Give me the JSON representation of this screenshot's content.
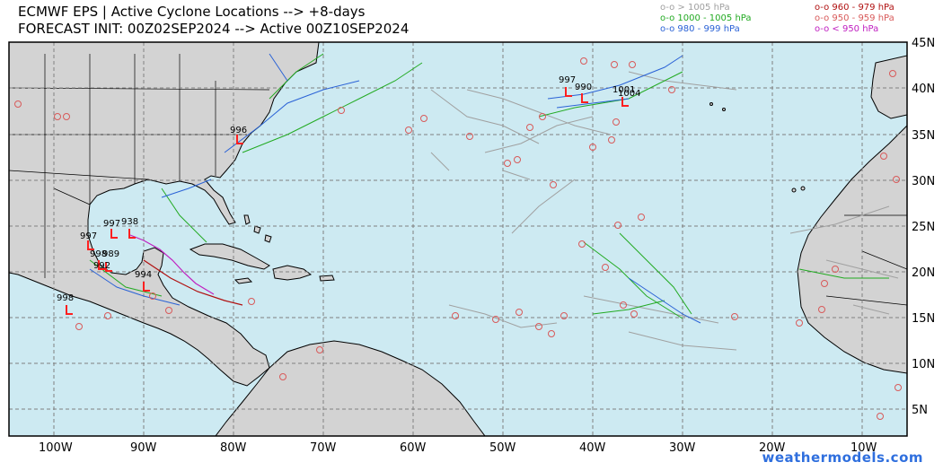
{
  "header": {
    "title_line1": "ECMWF EPS | Active Cyclone Locations --> +8-days",
    "title_line2": "FORECAST INIT: 00Z02SEP2024 --> Active 00Z10SEP2024"
  },
  "legend": [
    {
      "text": "o-o > 1005 hPa",
      "color": "#a0a0a0"
    },
    {
      "text": "o-o 1000 - 1005 hPa",
      "color": "#22aa22"
    },
    {
      "text": "o-o 980 - 999 hPa",
      "color": "#2a62d6"
    },
    {
      "text": "o-o 960 - 979 hPa",
      "color": "#b01010"
    },
    {
      "text": "o-o 950 - 959 hPa",
      "color": "#d85a5a"
    },
    {
      "text": "o-o < 950 hPa",
      "color": "#c020c0"
    }
  ],
  "map": {
    "lon_range": [
      -105,
      -5
    ],
    "lat_range": [
      0,
      45
    ],
    "lat_labels": [
      "45N",
      "40N",
      "35N",
      "30N",
      "25N",
      "20N",
      "15N",
      "10N",
      "5N"
    ],
    "lon_labels": [
      "100W",
      "90W",
      "80W",
      "70W",
      "60W",
      "50W",
      "40W",
      "30W",
      "20W",
      "10W"
    ],
    "ocean_color": "#cdeaf2",
    "land_color": "#d3d3d3",
    "grid": true
  },
  "pressure_labels": [
    "997",
    "990",
    "1001",
    "1004",
    "996",
    "997",
    "938",
    "997",
    "998",
    "989",
    "992",
    "994",
    "998"
  ],
  "watermark": "weathermodels.com"
}
